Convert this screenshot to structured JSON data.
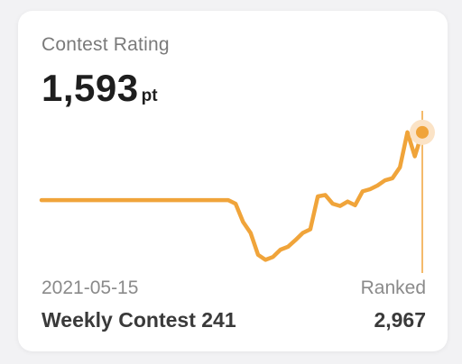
{
  "card": {
    "title": "Contest Rating",
    "rating_value": "1,593",
    "rating_unit": "pt"
  },
  "selected_contest": {
    "date": "2021-05-15",
    "name": "Weekly Contest 241",
    "ranked_label": "Ranked",
    "ranked_value": "2,967"
  },
  "colors": {
    "accent": "#f0a43a",
    "marker_halo": "#fbe3c6"
  },
  "chart_data": {
    "type": "line",
    "series": [
      {
        "values": [
          1500,
          1500,
          1500,
          1500,
          1500,
          1500,
          1500,
          1500,
          1500,
          1500,
          1500,
          1500,
          1500,
          1500,
          1500,
          1500,
          1500,
          1500,
          1500,
          1500,
          1500,
          1500,
          1500,
          1500,
          1500,
          1500,
          1495,
          1470,
          1455,
          1425,
          1418,
          1422,
          1432,
          1436,
          1445,
          1455,
          1460,
          1505,
          1507,
          1495,
          1492,
          1498,
          1493,
          1512,
          1515,
          1520,
          1527,
          1530,
          1545,
          1593,
          1560,
          1593
        ]
      }
    ],
    "ylim": [
      1400,
      1620
    ],
    "grid": false
  }
}
